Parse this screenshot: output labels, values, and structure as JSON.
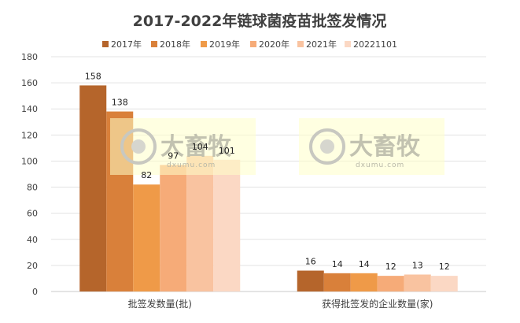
{
  "chart_data": {
    "type": "bar",
    "title": "2017-2022年链球菌疫苗批签发情况",
    "categories": [
      "批签发数量(批)",
      "获得批签发的企业数量(家)"
    ],
    "series": [
      {
        "name": "2017年",
        "values": [
          158,
          16
        ],
        "color": "#b5652b"
      },
      {
        "name": "2018年",
        "values": [
          138,
          14
        ],
        "color": "#d9803a"
      },
      {
        "name": "2019年",
        "values": [
          82,
          14
        ],
        "color": "#ef9a48"
      },
      {
        "name": "2020年",
        "values": [
          97,
          12
        ],
        "color": "#f6ab78"
      },
      {
        "name": "2021年",
        "values": [
          104,
          13
        ],
        "color": "#f9c3a0"
      },
      {
        "name": "20221101",
        "values": [
          101,
          12
        ],
        "color": "#fbd8c4"
      }
    ],
    "ylim": [
      0,
      180
    ],
    "yticks": [
      0,
      20,
      40,
      60,
      80,
      100,
      120,
      140,
      160,
      180
    ],
    "grid": true,
    "legend": "top"
  },
  "watermark": {
    "text": "大畜牧",
    "sub": "dxumu.com"
  }
}
